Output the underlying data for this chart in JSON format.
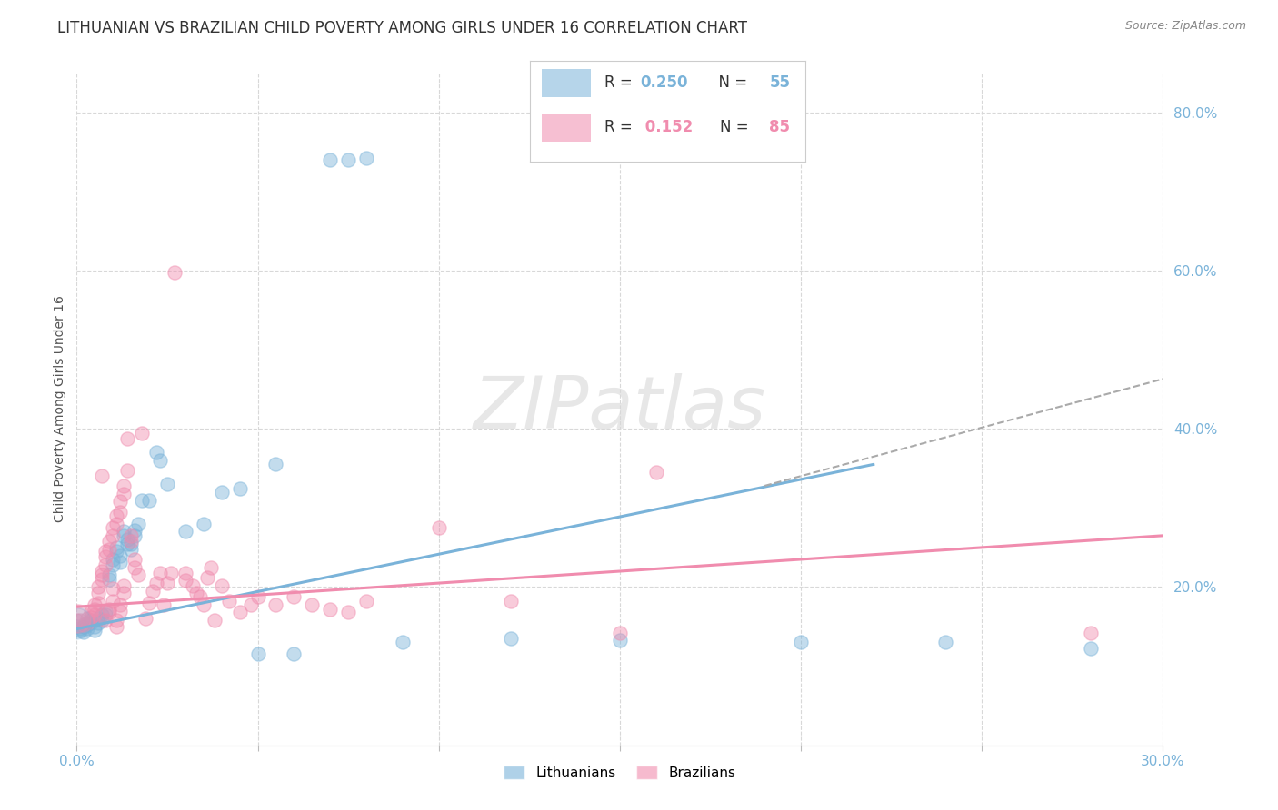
{
  "title": "LITHUANIAN VS BRAZILIAN CHILD POVERTY AMONG GIRLS UNDER 16 CORRELATION CHART",
  "source": "Source: ZipAtlas.com",
  "ylabel": "Child Poverty Among Girls Under 16",
  "xlim": [
    0.0,
    0.3
  ],
  "ylim": [
    0.0,
    0.85
  ],
  "yticks": [
    0.2,
    0.4,
    0.6,
    0.8
  ],
  "ytick_labels": [
    "20.0%",
    "40.0%",
    "60.0%",
    "80.0%"
  ],
  "xticks": [
    0.0,
    0.05,
    0.1,
    0.15,
    0.2,
    0.25,
    0.3
  ],
  "watermark_text": "ZIPatlas",
  "lith_color": "#7ab3d9",
  "braz_color": "#f08cae",
  "lith_line_x0": 0.0,
  "lith_line_x1": 0.22,
  "lith_line_y0": 0.147,
  "lith_line_y1": 0.355,
  "dash_line_x0": 0.19,
  "dash_line_x1": 0.3,
  "dash_line_y0": 0.328,
  "dash_line_y1": 0.463,
  "braz_line_x0": 0.0,
  "braz_line_x1": 0.3,
  "braz_line_y0": 0.175,
  "braz_line_y1": 0.265,
  "lith_scatter": [
    [
      0.001,
      0.148
    ],
    [
      0.001,
      0.145
    ],
    [
      0.002,
      0.15
    ],
    [
      0.002,
      0.143
    ],
    [
      0.003,
      0.152
    ],
    [
      0.003,
      0.148
    ],
    [
      0.004,
      0.155
    ],
    [
      0.004,
      0.158
    ],
    [
      0.005,
      0.15
    ],
    [
      0.005,
      0.145
    ],
    [
      0.006,
      0.16
    ],
    [
      0.006,
      0.155
    ],
    [
      0.007,
      0.165
    ],
    [
      0.007,
      0.158
    ],
    [
      0.008,
      0.17
    ],
    [
      0.008,
      0.165
    ],
    [
      0.009,
      0.21
    ],
    [
      0.009,
      0.215
    ],
    [
      0.01,
      0.228
    ],
    [
      0.01,
      0.235
    ],
    [
      0.011,
      0.245
    ],
    [
      0.011,
      0.25
    ],
    [
      0.012,
      0.24
    ],
    [
      0.012,
      0.232
    ],
    [
      0.013,
      0.27
    ],
    [
      0.013,
      0.265
    ],
    [
      0.014,
      0.26
    ],
    [
      0.014,
      0.255
    ],
    [
      0.015,
      0.255
    ],
    [
      0.015,
      0.248
    ],
    [
      0.016,
      0.272
    ],
    [
      0.016,
      0.265
    ],
    [
      0.017,
      0.28
    ],
    [
      0.018,
      0.31
    ],
    [
      0.02,
      0.31
    ],
    [
      0.022,
      0.37
    ],
    [
      0.023,
      0.36
    ],
    [
      0.025,
      0.33
    ],
    [
      0.03,
      0.27
    ],
    [
      0.035,
      0.28
    ],
    [
      0.04,
      0.32
    ],
    [
      0.045,
      0.325
    ],
    [
      0.05,
      0.115
    ],
    [
      0.055,
      0.355
    ],
    [
      0.06,
      0.115
    ],
    [
      0.07,
      0.74
    ],
    [
      0.075,
      0.74
    ],
    [
      0.08,
      0.742
    ],
    [
      0.09,
      0.13
    ],
    [
      0.12,
      0.135
    ],
    [
      0.15,
      0.133
    ],
    [
      0.2,
      0.13
    ],
    [
      0.24,
      0.13
    ],
    [
      0.28,
      0.123
    ],
    [
      0.0,
      0.15
    ]
  ],
  "braz_scatter": [
    [
      0.001,
      0.158
    ],
    [
      0.002,
      0.152
    ],
    [
      0.003,
      0.155
    ],
    [
      0.003,
      0.16
    ],
    [
      0.004,
      0.162
    ],
    [
      0.004,
      0.168
    ],
    [
      0.005,
      0.172
    ],
    [
      0.005,
      0.165
    ],
    [
      0.005,
      0.178
    ],
    [
      0.006,
      0.18
    ],
    [
      0.006,
      0.192
    ],
    [
      0.006,
      0.2
    ],
    [
      0.007,
      0.21
    ],
    [
      0.007,
      0.22
    ],
    [
      0.007,
      0.215
    ],
    [
      0.007,
      0.34
    ],
    [
      0.008,
      0.228
    ],
    [
      0.008,
      0.238
    ],
    [
      0.008,
      0.245
    ],
    [
      0.008,
      0.158
    ],
    [
      0.009,
      0.248
    ],
    [
      0.009,
      0.258
    ],
    [
      0.009,
      0.172
    ],
    [
      0.009,
      0.168
    ],
    [
      0.01,
      0.265
    ],
    [
      0.01,
      0.275
    ],
    [
      0.01,
      0.182
    ],
    [
      0.01,
      0.198
    ],
    [
      0.011,
      0.28
    ],
    [
      0.011,
      0.29
    ],
    [
      0.011,
      0.158
    ],
    [
      0.011,
      0.15
    ],
    [
      0.012,
      0.295
    ],
    [
      0.012,
      0.308
    ],
    [
      0.012,
      0.178
    ],
    [
      0.012,
      0.17
    ],
    [
      0.013,
      0.318
    ],
    [
      0.013,
      0.328
    ],
    [
      0.013,
      0.202
    ],
    [
      0.013,
      0.192
    ],
    [
      0.014,
      0.388
    ],
    [
      0.014,
      0.348
    ],
    [
      0.015,
      0.258
    ],
    [
      0.015,
      0.265
    ],
    [
      0.016,
      0.225
    ],
    [
      0.016,
      0.235
    ],
    [
      0.017,
      0.215
    ],
    [
      0.018,
      0.395
    ],
    [
      0.019,
      0.16
    ],
    [
      0.02,
      0.18
    ],
    [
      0.021,
      0.195
    ],
    [
      0.022,
      0.205
    ],
    [
      0.023,
      0.218
    ],
    [
      0.024,
      0.178
    ],
    [
      0.025,
      0.205
    ],
    [
      0.026,
      0.218
    ],
    [
      0.027,
      0.598
    ],
    [
      0.03,
      0.218
    ],
    [
      0.03,
      0.208
    ],
    [
      0.032,
      0.202
    ],
    [
      0.033,
      0.192
    ],
    [
      0.034,
      0.188
    ],
    [
      0.035,
      0.178
    ],
    [
      0.036,
      0.212
    ],
    [
      0.037,
      0.225
    ],
    [
      0.038,
      0.158
    ],
    [
      0.04,
      0.202
    ],
    [
      0.042,
      0.182
    ],
    [
      0.045,
      0.168
    ],
    [
      0.048,
      0.178
    ],
    [
      0.05,
      0.188
    ],
    [
      0.055,
      0.178
    ],
    [
      0.06,
      0.188
    ],
    [
      0.065,
      0.178
    ],
    [
      0.07,
      0.172
    ],
    [
      0.075,
      0.168
    ],
    [
      0.08,
      0.182
    ],
    [
      0.1,
      0.275
    ],
    [
      0.12,
      0.182
    ],
    [
      0.15,
      0.142
    ],
    [
      0.16,
      0.345
    ],
    [
      0.28,
      0.142
    ],
    [
      0.0,
      0.158
    ]
  ],
  "background_color": "#ffffff",
  "grid_color": "#d8d8d8",
  "title_fontsize": 12,
  "axis_label_fontsize": 10,
  "tick_fontsize": 11,
  "marker_size": 120,
  "marker_alpha": 0.45
}
